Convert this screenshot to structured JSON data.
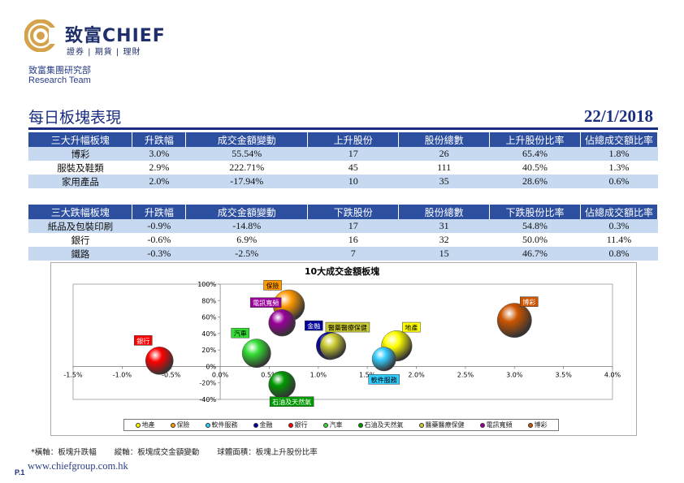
{
  "header": {
    "brand_cn": "致富",
    "brand_en": "CHIEF",
    "brand_sub": "證券 | 期貨 | 理財",
    "dept_cn": "致富集團研究部",
    "dept_en": "Research Team"
  },
  "title": "每日板塊表現",
  "date": "22/1/2018",
  "top_table": {
    "headers": [
      "三大升幅板塊",
      "升跌幅",
      "成交金額變動",
      "上升股份",
      "股份總數",
      "上升股份比率",
      "佔總成交額比率"
    ],
    "rows": [
      [
        "博彩",
        "3.0%",
        "55.54%",
        "17",
        "26",
        "65.4%",
        "1.8%"
      ],
      [
        "服裝及鞋類",
        "2.9%",
        "222.71%",
        "45",
        "111",
        "40.5%",
        "1.3%"
      ],
      [
        "家用產品",
        "2.0%",
        "-17.94%",
        "10",
        "35",
        "28.6%",
        "0.6%"
      ]
    ]
  },
  "bottom_table": {
    "headers": [
      "三大跌幅板塊",
      "升跌幅",
      "成交金額變動",
      "下跌股份",
      "股份總數",
      "下跌股份比率",
      "佔總成交額比率"
    ],
    "rows": [
      [
        "紙品及包裝印刷",
        "-0.9%",
        "-14.8%",
        "17",
        "31",
        "54.8%",
        "0.3%"
      ],
      [
        "銀行",
        "-0.6%",
        "6.9%",
        "16",
        "32",
        "50.0%",
        "11.4%"
      ],
      [
        "鐵路",
        "-0.3%",
        "-2.5%",
        "7",
        "15",
        "46.7%",
        "0.8%"
      ]
    ]
  },
  "chart_data": {
    "type": "scatter",
    "title": "10大成交金額板塊",
    "xlim": [
      -1.5,
      4.0
    ],
    "ylim": [
      -40,
      100
    ],
    "x_ticks": [
      "-1.5%",
      "-1.0%",
      "-0.5%",
      "0.0%",
      "0.5%",
      "1.0%",
      "1.5%",
      "2.0%",
      "2.5%",
      "3.0%",
      "3.5%",
      "4.0%"
    ],
    "y_ticks": [
      "100%",
      "80%",
      "60%",
      "40%",
      "20%",
      "0%",
      "-20%",
      "-40%"
    ],
    "series": [
      {
        "name": "地產",
        "x": 1.8,
        "y": 25,
        "size": 64,
        "color": "#ffff00",
        "label_pos": "above-right"
      },
      {
        "name": "保險",
        "x": 0.7,
        "y": 74,
        "size": 66,
        "color": "#ff9900",
        "label_pos": "above-left"
      },
      {
        "name": "軟件服務",
        "x": 1.67,
        "y": 9,
        "size": 50,
        "color": "#33ccff",
        "label_pos": "below"
      },
      {
        "name": "金融",
        "x": 1.12,
        "y": 25,
        "size": 58,
        "color": "#000099",
        "label_pos": "above-left"
      },
      {
        "name": "銀行",
        "x": -0.62,
        "y": 7,
        "size": 58,
        "color": "#ff0000",
        "label_pos": "above-left"
      },
      {
        "name": "汽車",
        "x": 0.37,
        "y": 16,
        "size": 60,
        "color": "#33dd33",
        "label_pos": "above-left"
      },
      {
        "name": "石油及天然氣",
        "x": 0.63,
        "y": -22,
        "size": 56,
        "color": "#009900",
        "label_pos": "below-right"
      },
      {
        "name": "醫藥醫療保健",
        "x": 1.15,
        "y": 25,
        "size": 54,
        "color": "#cccc33",
        "label_pos": "above-right"
      },
      {
        "name": "電訊寬頻",
        "x": 0.63,
        "y": 53,
        "size": 56,
        "color": "#990099",
        "label_pos": "above-left"
      },
      {
        "name": "博彩",
        "x": 3.0,
        "y": 56,
        "size": 72,
        "color": "#cc5500",
        "label_pos": "above-right"
      }
    ],
    "legend": "bottom"
  },
  "footnote": [
    "橫軸：板塊升跌幅",
    "縱軸：板塊成交金額變動",
    "球體面積：板塊上升股份比率"
  ],
  "footer": {
    "page": "P.1",
    "website": "www.chiefgroup.com.hk"
  }
}
